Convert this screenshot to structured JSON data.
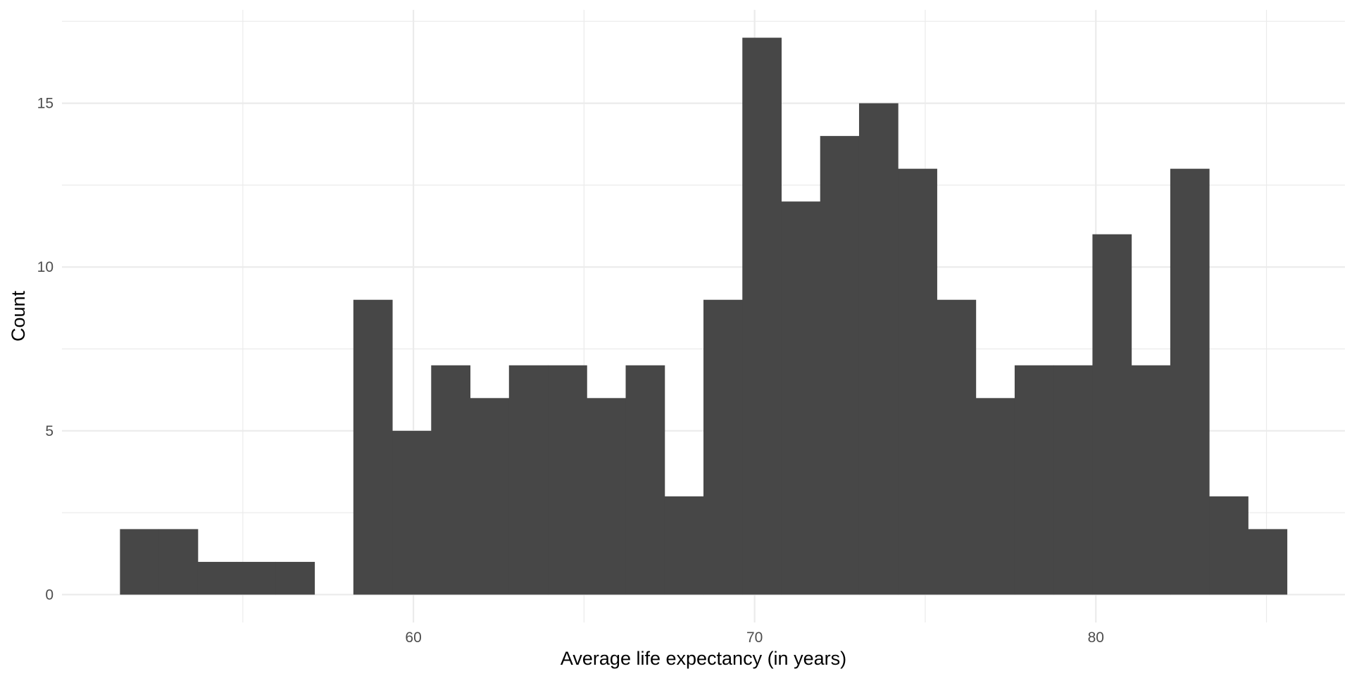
{
  "chart_data": {
    "type": "bar",
    "title": "",
    "xlabel": "Average life expectancy (in years)",
    "ylabel": "Count",
    "bin_width": 1.14,
    "bins": [
      {
        "x_start": 51.4,
        "x_end": 52.54,
        "count": 2
      },
      {
        "x_start": 52.54,
        "x_end": 53.68,
        "count": 2
      },
      {
        "x_start": 53.68,
        "x_end": 54.82,
        "count": 1
      },
      {
        "x_start": 54.82,
        "x_end": 55.96,
        "count": 1
      },
      {
        "x_start": 55.96,
        "x_end": 57.1,
        "count": 1
      },
      {
        "x_start": 57.1,
        "x_end": 58.24,
        "count": 0
      },
      {
        "x_start": 58.24,
        "x_end": 59.38,
        "count": 9
      },
      {
        "x_start": 59.38,
        "x_end": 60.52,
        "count": 5
      },
      {
        "x_start": 60.52,
        "x_end": 61.66,
        "count": 7
      },
      {
        "x_start": 61.66,
        "x_end": 62.8,
        "count": 6
      },
      {
        "x_start": 62.8,
        "x_end": 63.94,
        "count": 7
      },
      {
        "x_start": 63.94,
        "x_end": 65.08,
        "count": 7
      },
      {
        "x_start": 65.08,
        "x_end": 66.22,
        "count": 6
      },
      {
        "x_start": 66.22,
        "x_end": 67.36,
        "count": 7
      },
      {
        "x_start": 67.36,
        "x_end": 68.5,
        "count": 3
      },
      {
        "x_start": 68.5,
        "x_end": 69.64,
        "count": 9
      },
      {
        "x_start": 69.64,
        "x_end": 70.78,
        "count": 17
      },
      {
        "x_start": 70.78,
        "x_end": 71.92,
        "count": 12
      },
      {
        "x_start": 71.92,
        "x_end": 73.06,
        "count": 14
      },
      {
        "x_start": 73.06,
        "x_end": 74.2,
        "count": 15
      },
      {
        "x_start": 74.2,
        "x_end": 75.34,
        "count": 13
      },
      {
        "x_start": 75.34,
        "x_end": 76.48,
        "count": 9
      },
      {
        "x_start": 76.48,
        "x_end": 77.62,
        "count": 6
      },
      {
        "x_start": 77.62,
        "x_end": 78.76,
        "count": 7
      },
      {
        "x_start": 78.76,
        "x_end": 79.9,
        "count": 7
      },
      {
        "x_start": 79.9,
        "x_end": 81.04,
        "count": 11
      },
      {
        "x_start": 81.04,
        "x_end": 82.18,
        "count": 7
      },
      {
        "x_start": 82.18,
        "x_end": 83.32,
        "count": 13
      },
      {
        "x_start": 83.32,
        "x_end": 84.46,
        "count": 3
      },
      {
        "x_start": 84.46,
        "x_end": 85.6,
        "count": 2
      }
    ],
    "xlim": [
      49.7,
      87.3
    ],
    "ylim": [
      -0.85,
      17.85
    ],
    "x_ticks": [
      60,
      70,
      80
    ],
    "x_tick_labels": [
      "60",
      "70",
      "80"
    ],
    "x_minor_ticks": [
      55,
      65,
      75,
      85
    ],
    "y_ticks": [
      0,
      5,
      10,
      15
    ],
    "y_tick_labels": [
      "0",
      "5",
      "10",
      "15"
    ],
    "y_minor_ticks": [
      2.5,
      7.5,
      12.5,
      17.5
    ],
    "grid": true,
    "legend": "none",
    "colors": {
      "bar": "#474747",
      "grid": "#ebebeb",
      "background": "#ffffff"
    }
  }
}
